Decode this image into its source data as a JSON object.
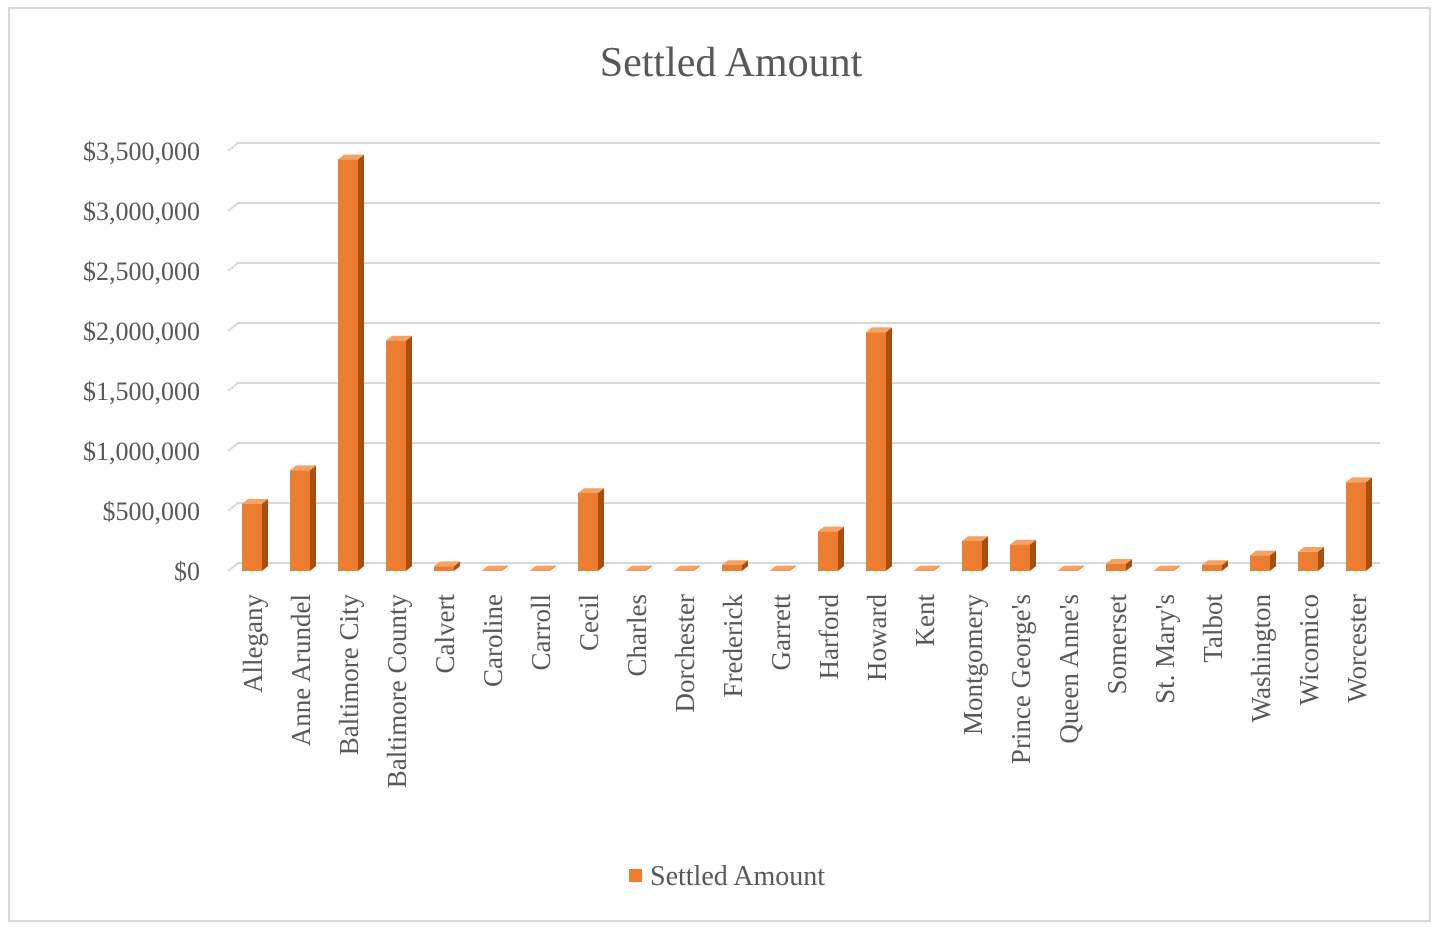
{
  "chart_data": {
    "type": "bar",
    "title": "Settled Amount",
    "xlabel": "",
    "ylabel": "",
    "categories": [
      "Allegany",
      "Anne Arundel",
      "Baltimore City",
      "Baltimore County",
      "Calvert",
      "Caroline",
      "Carroll",
      "Cecil",
      "Charles",
      "Dorchester",
      "Frederick",
      "Garrett",
      "Harford",
      "Howard",
      "Kent",
      "Montgomery",
      "Prince George's",
      "Queen Anne's",
      "Somerset",
      "St. Mary's",
      "Talbot",
      "Washington",
      "Wicomico",
      "Worcester"
    ],
    "series": [
      {
        "name": "Settled Amount",
        "values": [
          560000,
          840000,
          3430000,
          1920000,
          40000,
          5000,
          5000,
          650000,
          5000,
          5000,
          50000,
          5000,
          330000,
          1990000,
          5000,
          250000,
          220000,
          5000,
          60000,
          5000,
          50000,
          130000,
          160000,
          740000
        ]
      }
    ],
    "ylim": [
      0,
      3500000
    ],
    "yticks": [
      "$0",
      "$500,000",
      "$1,000,000",
      "$1,500,000",
      "$2,000,000",
      "$2,500,000",
      "$3,000,000",
      "$3,500,000"
    ],
    "grid": true,
    "legend": "bottom",
    "colors": {
      "bar_front": "#ed7d31",
      "bar_side": "#a84f15",
      "bar_top": "#f4a266",
      "grid": "#d9d9d9",
      "text": "#595959"
    }
  }
}
